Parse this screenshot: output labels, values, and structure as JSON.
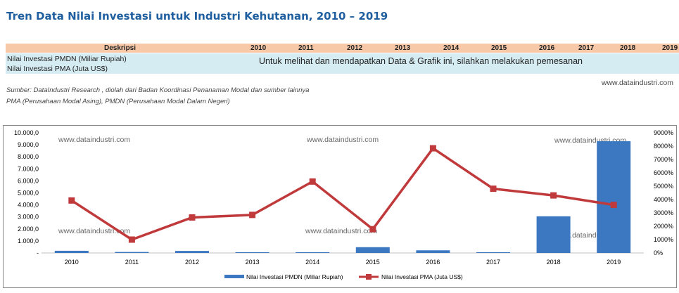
{
  "title": "Tren Data Nilai Investasi untuk Industri Kehutanan, 2010 – 2019",
  "table": {
    "header_label": "Deskripsi",
    "years": [
      "2010",
      "2011",
      "2012",
      "2013",
      "2014",
      "2015",
      "2016",
      "2017",
      "2018",
      "2019"
    ],
    "rows": [
      "Nilai Investasi PMDN (Miliar Rupiah)",
      "Nilai Investasi PMA (Juta US$)"
    ],
    "notice": "Untuk melihat dan mendapatkan Data & Grafik ini, silahkan melakukan pemesanan"
  },
  "source_line1": "Sumber: DataIndustri Research , diolah dari Badan Koordinasi Penanaman Modal dan sumber lainnya",
  "source_line2": "PMA (Perusahaan Modal Asing), PMDN (Perusahaan Modal Dalam Negeri)",
  "website": "www.dataindustri.com",
  "watermark": "www.dataindustri.com",
  "colors": {
    "bar": "#3c78c2",
    "line": "#c0393b",
    "title": "#1f5f9f",
    "header_bg": "#f7c9a9",
    "body_bg": "#d6ecf3"
  },
  "chart_data": {
    "type": "bar",
    "categories": [
      "2010",
      "2011",
      "2012",
      "2013",
      "2014",
      "2015",
      "2016",
      "2017",
      "2018",
      "2019"
    ],
    "left_ticks": [
      "10.000,0",
      "9.000,0",
      "8.000,0",
      "7.000,0",
      "6.000,0",
      "5.000,0",
      "4.000,0",
      "3.000,0",
      "2.000,0",
      "1.000,0",
      "-"
    ],
    "right_ticks": [
      "9000%",
      "8000%",
      "7000%",
      "6000%",
      "5000%",
      "4000%",
      "3000%",
      "2000%",
      "1000%",
      "0%"
    ],
    "ylim_left": [
      0,
      10000
    ],
    "ylim_right": [
      0,
      9000
    ],
    "series": [
      {
        "name": "Nilai Investasi PMDN (Miliar Rupiah)",
        "type": "bar",
        "axis": "left",
        "values": [
          180,
          80,
          170,
          60,
          60,
          480,
          220,
          60,
          3050,
          9300
        ]
      },
      {
        "name": "Nilai Investasi PMA (Juta US$)",
        "type": "line",
        "axis": "right",
        "values": [
          3930,
          1000,
          2660,
          2850,
          5350,
          1780,
          7840,
          4810,
          4310,
          3600
        ]
      }
    ],
    "legend_position": "bottom"
  }
}
